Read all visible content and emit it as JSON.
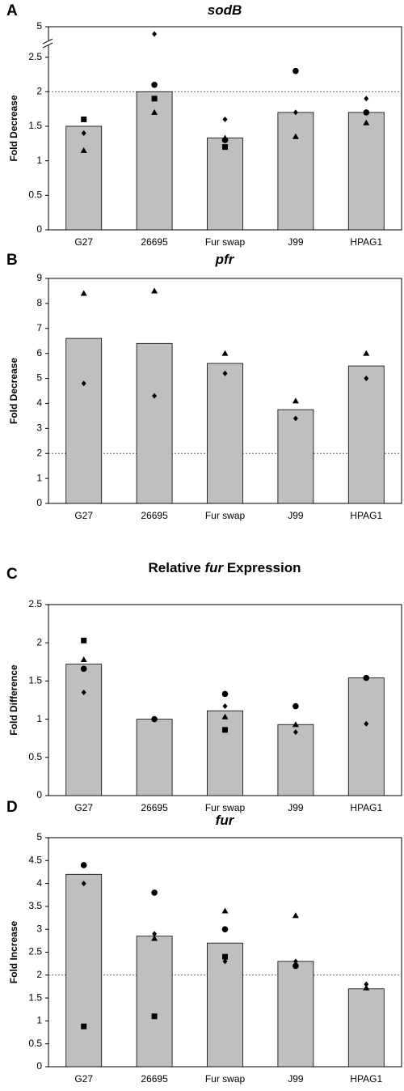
{
  "chart_data": [
    {
      "type": "bar",
      "panel": "A",
      "title": [
        {
          "text": "sodB",
          "italic": true
        }
      ],
      "ylabel": "Fold Decrease",
      "categories": [
        "G27",
        "26695",
        "Fur swap",
        "J99",
        "HPAG1"
      ],
      "values": [
        1.5,
        2.0,
        1.33,
        1.7,
        1.7
      ],
      "color": "#bfbfbf",
      "points": [
        {
          "marker": "square",
          "values": [
            1.6,
            1.9,
            1.2,
            null,
            null
          ]
        },
        {
          "marker": "circle",
          "values": [
            null,
            2.1,
            1.3,
            2.3,
            1.7
          ]
        },
        {
          "marker": "diamond",
          "values": [
            1.4,
            4.4,
            1.6,
            1.7,
            1.9
          ]
        },
        {
          "marker": "triangle",
          "values": [
            1.15,
            1.7,
            1.33,
            1.35,
            1.55
          ]
        }
      ],
      "ylim": [
        0,
        5
      ],
      "yticks": [
        0,
        0.5,
        1,
        1.5,
        2,
        2.5,
        5
      ],
      "axis_break": 2.5,
      "reference_line": 2
    },
    {
      "type": "bar",
      "panel": "B",
      "title": [
        {
          "text": "pfr",
          "italic": true
        }
      ],
      "ylabel": "Fold Decrease",
      "categories": [
        "G27",
        "26695",
        "Fur swap",
        "J99",
        "HPAG1"
      ],
      "values": [
        6.6,
        6.4,
        5.6,
        3.75,
        5.5
      ],
      "color": "#bfbfbf",
      "points": [
        {
          "marker": "triangle",
          "values": [
            8.4,
            8.5,
            6.0,
            4.1,
            6.0
          ]
        },
        {
          "marker": "diamond",
          "values": [
            4.8,
            4.3,
            5.2,
            3.4,
            5.0
          ]
        }
      ],
      "ylim": [
        0,
        9
      ],
      "yticks": [
        0,
        1,
        2,
        3,
        4,
        5,
        6,
        7,
        8,
        9
      ],
      "reference_line": 2
    },
    {
      "type": "bar",
      "panel": "C",
      "title": [
        {
          "text": "Relative "
        },
        {
          "text": "fur",
          "italic": true
        },
        {
          "text": " Expression"
        }
      ],
      "ylabel": "Fold Difference",
      "categories": [
        "G27",
        "26695",
        "Fur swap",
        "J99",
        "HPAG1"
      ],
      "values": [
        1.72,
        1.0,
        1.11,
        0.93,
        1.54
      ],
      "color": "#bfbfbf",
      "points": [
        {
          "marker": "square",
          "values": [
            2.03,
            null,
            0.86,
            null,
            null
          ]
        },
        {
          "marker": "triangle",
          "values": [
            1.78,
            null,
            1.03,
            0.93,
            null
          ]
        },
        {
          "marker": "circle",
          "values": [
            1.66,
            1.0,
            1.33,
            1.17,
            1.54
          ]
        },
        {
          "marker": "diamond",
          "values": [
            1.35,
            null,
            1.17,
            0.83,
            0.94
          ]
        }
      ],
      "ylim": [
        0,
        2.5
      ],
      "yticks": [
        0,
        0.5,
        1,
        1.5,
        2,
        2.5
      ]
    },
    {
      "type": "bar",
      "panel": "D",
      "title": [
        {
          "text": "fur",
          "italic": true
        }
      ],
      "ylabel": "Fold Increase",
      "categories": [
        "G27",
        "26695",
        "Fur swap",
        "J99",
        "HPAG1"
      ],
      "values": [
        4.2,
        2.85,
        2.7,
        2.3,
        1.7
      ],
      "color": "#bfbfbf",
      "points": [
        {
          "marker": "circle",
          "values": [
            4.4,
            3.8,
            3.0,
            2.2,
            null
          ]
        },
        {
          "marker": "square",
          "values": [
            0.88,
            1.1,
            2.4,
            null,
            null
          ]
        },
        {
          "marker": "triangle",
          "values": [
            null,
            2.8,
            3.4,
            3.3,
            1.72
          ]
        },
        {
          "marker": "diamond",
          "values": [
            4.0,
            2.9,
            2.3,
            2.3,
            1.8
          ]
        }
      ],
      "ylim": [
        0,
        5
      ],
      "yticks": [
        0,
        0.5,
        1,
        1.5,
        2,
        2.5,
        3,
        3.5,
        4,
        4.5,
        5
      ],
      "reference_line": 2
    }
  ]
}
